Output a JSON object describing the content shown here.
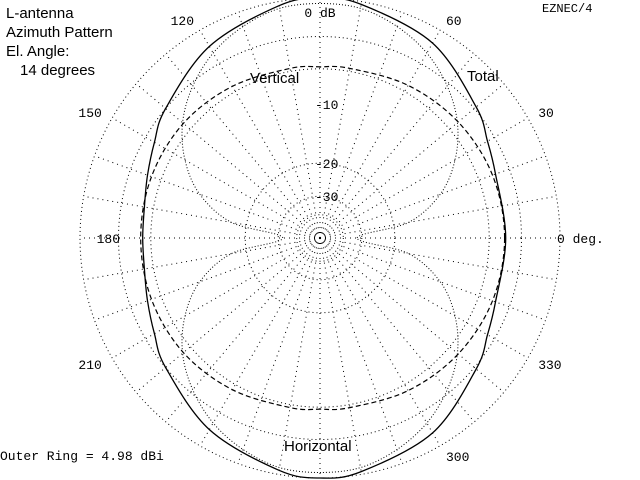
{
  "title_lines": [
    "L-antenna",
    "Azimuth Pattern",
    "El. Angle:",
    "14 degrees"
  ],
  "program": "EZNEC/4",
  "outer_ring_note": "Outer Ring = 4.98 dBi",
  "chart_data": {
    "type": "polar",
    "angle_convention": "azimuth degrees, 0 at right, counter-clockwise",
    "radial_scale": "ARRL log (0.89 per 2 dB)",
    "outer_ring_gain_dbi": 4.98,
    "ring_labels": [
      {
        "db": 0,
        "text": "0 dB"
      },
      {
        "db": -10,
        "text": "-10"
      },
      {
        "db": -20,
        "text": "-20"
      },
      {
        "db": -30,
        "text": "-30"
      }
    ],
    "minor_rings_db": [
      -3,
      -6,
      -20,
      -30,
      -40
    ],
    "ray_step_deg": 10,
    "angle_labels": [
      {
        "az": 0,
        "text": "0 deg."
      },
      {
        "az": 30,
        "text": "30"
      },
      {
        "az": 60,
        "text": "60"
      },
      {
        "az": 90,
        "text": "0 dB"
      },
      {
        "az": 120,
        "text": "120"
      },
      {
        "az": 150,
        "text": "150"
      },
      {
        "az": 180,
        "text": "180"
      },
      {
        "az": 210,
        "text": "210"
      },
      {
        "az": 300,
        "text": "300"
      },
      {
        "az": 330,
        "text": "330"
      }
    ],
    "series": [
      {
        "name": "Total",
        "style": "solid",
        "azimuth_deg": [
          0,
          20,
          30,
          40,
          60,
          80,
          90,
          100,
          120,
          140,
          150,
          160,
          170,
          180,
          190,
          200,
          210,
          220,
          240,
          260,
          270,
          280,
          300,
          320,
          330,
          340
        ],
        "gain_db": [
          -4.4,
          -4.3,
          -3.7,
          -2.8,
          -1.1,
          -0.2,
          0,
          -0.3,
          -1.4,
          -3.0,
          -3.9,
          -4.6,
          -5.1,
          -5.2,
          -5.1,
          -4.6,
          -3.9,
          -3.0,
          -1.4,
          -0.3,
          0,
          -0.2,
          -1.1,
          -2.8,
          -3.7,
          -4.3
        ]
      },
      {
        "name": "Vertical",
        "style": "dashed",
        "azimuth_deg": [
          0,
          20,
          40,
          60,
          80,
          90,
          100,
          120,
          140,
          160,
          180,
          200,
          220,
          240,
          260,
          270,
          280,
          300,
          320,
          340
        ],
        "gain_db": [
          -4.5,
          -4.6,
          -4.9,
          -5.3,
          -5.7,
          -5.8,
          -5.7,
          -5.4,
          -5.1,
          -5.0,
          -5.0,
          -5.0,
          -5.1,
          -5.4,
          -5.7,
          -5.8,
          -5.7,
          -5.3,
          -4.9,
          -4.6
        ]
      },
      {
        "name": "Horizontal",
        "style": "dotted",
        "azimuth_deg": [
          0,
          10,
          20,
          30,
          40,
          50,
          60,
          70,
          80,
          90,
          100,
          110,
          120,
          130,
          140,
          150,
          160,
          170,
          180,
          190,
          200,
          210,
          220,
          230,
          240,
          250,
          260,
          270,
          280,
          290,
          300,
          310,
          320,
          330,
          340,
          350
        ],
        "gain_db": [
          -32,
          -16.8,
          -10.8,
          -7.4,
          -5.0,
          -3.3,
          -2.0,
          -1.1,
          -0.5,
          -0.4,
          -0.5,
          -1.1,
          -2.0,
          -3.3,
          -5.0,
          -7.4,
          -10.8,
          -16.8,
          -32,
          -16.8,
          -10.8,
          -7.4,
          -5.0,
          -3.3,
          -2.0,
          -1.1,
          -0.5,
          -0.4,
          -0.5,
          -1.1,
          -2.0,
          -3.3,
          -5.0,
          -7.4,
          -10.8,
          -16.8
        ]
      }
    ]
  }
}
